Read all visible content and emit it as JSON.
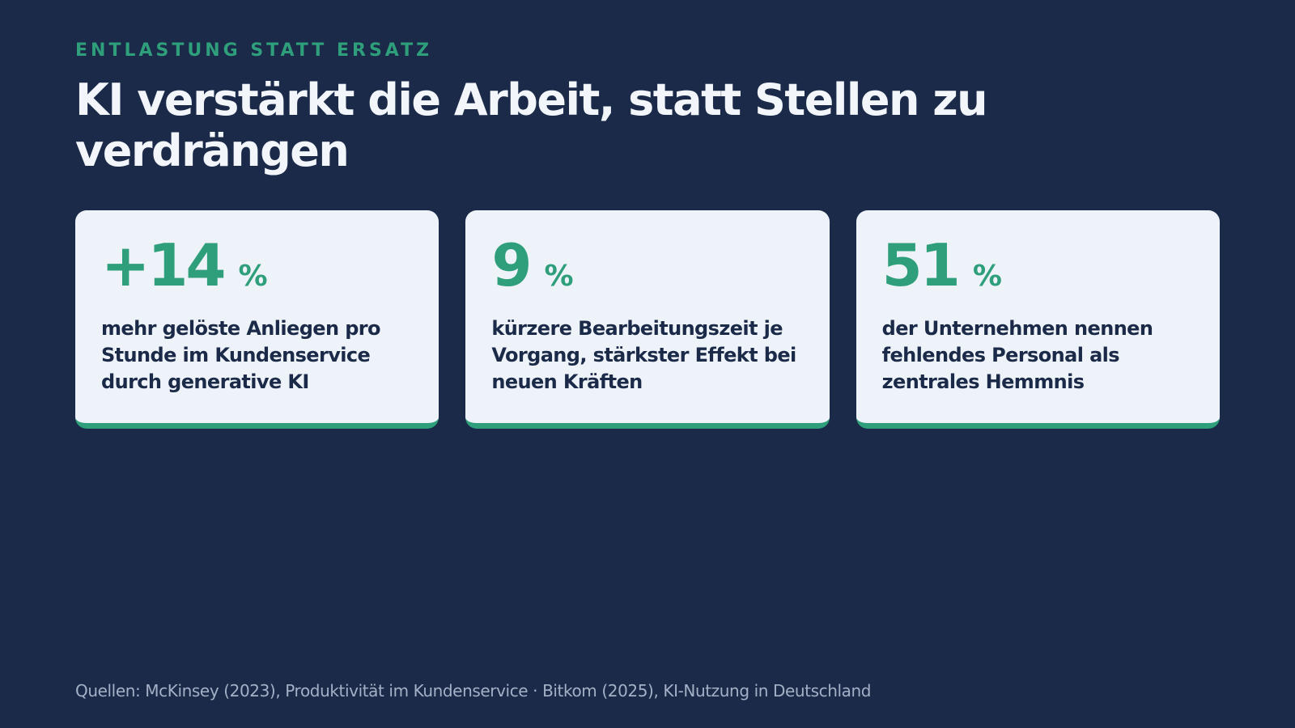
{
  "eyebrow": "ENTLASTUNG STATT ERSATZ",
  "headline": "KI verstärkt die Arbeit, statt Stellen zu verdrängen",
  "cards": [
    {
      "value": "+14",
      "unit": "%",
      "description": "mehr gelöste Anliegen pro Stunde im Kundenservice durch generative KI"
    },
    {
      "value": "9",
      "unit": "%",
      "description": "kürzere Bearbeitungszeit je Vorgang, stärkster Effekt bei neuen Kräften"
    },
    {
      "value": "51",
      "unit": "%",
      "description": "der Unternehmen nennen fehlendes Personal als zentrales Hemmnis"
    }
  ],
  "sources": "Quellen: McKinsey (2023), Produktivität im Kundenservice · Bitkom (2025), KI-Nutzung in Deutschland",
  "colors": {
    "background": "#1b2a48",
    "accent": "#2e9e7b",
    "card": "#eef3f9",
    "headline": "#f2f5fa",
    "muted": "#a3b0c6"
  }
}
